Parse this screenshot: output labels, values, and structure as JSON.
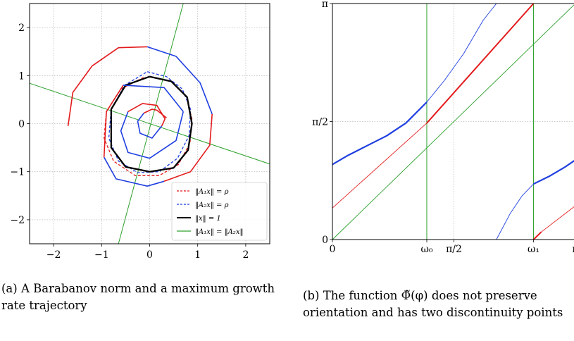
{
  "figure_a": {
    "caption_prefix": "(a)",
    "caption_text": "A Barabanov norm and a maximum growth rate trajectory",
    "chart_data": {
      "type": "line",
      "xlim": [
        -2.5,
        2.5
      ],
      "ylim": [
        -2.5,
        2.5
      ],
      "xticks": [
        "−2",
        "−1",
        "0",
        "1",
        "2"
      ],
      "yticks": [
        "2",
        "1",
        "0",
        "−1",
        "−2"
      ],
      "grid": true,
      "legend_position": "lower-right",
      "legend": [
        {
          "label": "‖A₁x‖ = ρ",
          "color": "#e31a1c",
          "style": "dashed"
        },
        {
          "label": "‖A₂x‖ = ρ",
          "color": "#1f3fe0",
          "style": "dashed"
        },
        {
          "label": "‖x‖ = 1",
          "color": "#000000",
          "style": "solid"
        },
        {
          "label": "‖A₁x‖ = ‖A₂x‖",
          "color": "#2ca02c",
          "style": "solid"
        }
      ],
      "series": [
        {
          "kind": "line",
          "color": "#2ca02c",
          "x": [
            -2.5,
            2.5
          ],
          "y": [
            0.84,
            -0.84
          ]
        },
        {
          "kind": "line",
          "color": "#2ca02c",
          "x": [
            -0.65,
            0.7
          ],
          "y": [
            -2.5,
            2.5
          ]
        },
        {
          "kind": "curve",
          "color": "#e31a1c",
          "dashed": true,
          "width": 1.3,
          "x": [
            0.0,
            0.45,
            0.77,
            0.88,
            0.84,
            0.6,
            0.2,
            -0.3,
            -0.75,
            -0.95,
            -0.9,
            -0.6,
            -0.15,
            0.0
          ],
          "y": [
            0.97,
            0.88,
            0.55,
            0.1,
            -0.4,
            -0.85,
            -1.08,
            -1.08,
            -0.78,
            -0.3,
            0.25,
            0.72,
            0.95,
            0.97
          ]
        },
        {
          "kind": "curve",
          "color": "#1f3fe0",
          "dashed": true,
          "width": 1.3,
          "x": [
            -0.05,
            0.35,
            0.68,
            0.85,
            0.82,
            0.58,
            0.2,
            -0.25,
            -0.65,
            -0.85,
            -0.8,
            -0.52,
            -0.05
          ],
          "y": [
            1.08,
            0.98,
            0.72,
            0.3,
            -0.25,
            -0.72,
            -1.0,
            -1.02,
            -0.78,
            -0.3,
            0.3,
            0.8,
            1.08
          ]
        },
        {
          "kind": "curve",
          "color": "#000000",
          "dashed": false,
          "width": 2.3,
          "x": [
            0.0,
            0.45,
            0.78,
            0.88,
            0.8,
            0.5,
            0.0,
            -0.5,
            -0.8,
            -0.8,
            -0.5,
            0.0
          ],
          "y": [
            0.98,
            0.88,
            0.55,
            0.0,
            -0.55,
            -0.92,
            -1.0,
            -0.9,
            -0.5,
            0.3,
            0.8,
            0.98
          ]
        },
        {
          "kind": "spiral",
          "color": "#e31a1c",
          "dashed": false,
          "width": 1.6,
          "x": [
            -1.7,
            -1.6,
            -1.2,
            -0.65,
            -0.05
          ],
          "y": [
            -0.05,
            0.65,
            1.2,
            1.58,
            1.6
          ]
        },
        {
          "kind": "spiral",
          "color": "#1f3fe0",
          "dashed": false,
          "width": 1.6,
          "x": [
            -0.05,
            0.55,
            1.05,
            1.3
          ],
          "y": [
            1.6,
            1.4,
            0.85,
            0.2
          ]
        },
        {
          "kind": "spiral",
          "color": "#e31a1c",
          "dashed": false,
          "width": 1.6,
          "x": [
            1.3,
            1.25,
            0.85,
            0.3
          ],
          "y": [
            0.2,
            -0.45,
            -1.0,
            -1.2
          ]
        },
        {
          "kind": "spiral",
          "color": "#1f3fe0",
          "dashed": false,
          "width": 1.6,
          "x": [
            0.3,
            -0.05,
            -0.7,
            -0.95
          ],
          "y": [
            -1.2,
            -1.3,
            -1.15,
            -0.7
          ]
        },
        {
          "kind": "spiral",
          "color": "#e31a1c",
          "dashed": false,
          "width": 1.6,
          "x": [
            -0.95,
            -0.9,
            -0.55
          ],
          "y": [
            -0.7,
            0.25,
            0.8
          ]
        },
        {
          "kind": "spiral",
          "color": "#1f3fe0",
          "dashed": false,
          "width": 1.6,
          "x": [
            -0.55,
            0.3,
            0.7
          ],
          "y": [
            0.8,
            0.75,
            0.25
          ]
        },
        {
          "kind": "spiral",
          "color": "#1f3fe0",
          "dashed": false,
          "width": 1.6,
          "x": [
            0.7,
            0.55,
            0.0,
            -0.45,
            -0.6,
            -0.45
          ],
          "y": [
            0.25,
            -0.35,
            -0.72,
            -0.6,
            -0.15,
            0.25
          ]
        },
        {
          "kind": "spiral",
          "color": "#e31a1c",
          "dashed": false,
          "width": 1.6,
          "x": [
            -0.45,
            -0.15,
            0.15,
            0.32,
            0.25
          ],
          "y": [
            0.25,
            0.42,
            0.38,
            0.1,
            -0.05
          ]
        },
        {
          "kind": "spiral",
          "color": "#1f3fe0",
          "dashed": false,
          "width": 1.6,
          "x": [
            0.25,
            0.05,
            -0.2,
            -0.25,
            -0.12
          ],
          "y": [
            -0.05,
            -0.3,
            -0.2,
            0.05,
            0.22
          ]
        },
        {
          "kind": "spiral",
          "color": "#e31a1c",
          "dashed": false,
          "width": 1.6,
          "x": [
            -0.12,
            0.05,
            0.15,
            0.35
          ],
          "y": [
            0.22,
            0.3,
            0.28,
            0.12
          ]
        }
      ]
    }
  },
  "figure_b": {
    "caption_prefix": "(b)",
    "caption_text": "The function Φ̃(φ) does not preserve orientation and has two discontinuity points",
    "chart_data": {
      "type": "line",
      "xlim": [
        0,
        3.1416
      ],
      "ylim": [
        0,
        3.1416
      ],
      "xticks": [
        {
          "value": 0,
          "label": "0"
        },
        {
          "value": 1.22,
          "label": "ω₀"
        },
        {
          "value": 1.5708,
          "label": "π/2"
        },
        {
          "value": 2.6,
          "label": "ω₁"
        },
        {
          "value": 3.1416,
          "label": "π"
        }
      ],
      "yticks": [
        {
          "value": 0,
          "label": "0"
        },
        {
          "value": 1.5708,
          "label": "π/2"
        },
        {
          "value": 3.1416,
          "label": "π"
        }
      ],
      "grid": true,
      "vlines": [
        {
          "x": 1.22,
          "color": "#2ca02c"
        },
        {
          "x": 2.6,
          "color": "#2ca02c"
        }
      ],
      "series": [
        {
          "color": "#2ca02c",
          "width": 0.9,
          "x": [
            0,
            3.1416
          ],
          "y": [
            0,
            3.1416
          ]
        },
        {
          "color": "#e31a1c",
          "width": 0.9,
          "x": [
            0,
            1.22
          ],
          "y": [
            0.42,
            1.55
          ]
        },
        {
          "color": "#e31a1c",
          "width": 2.0,
          "x": [
            1.22,
            2.6
          ],
          "y": [
            1.55,
            3.1416
          ]
        },
        {
          "color": "#e31a1c",
          "width": 2.0,
          "x": [
            2.6,
            2.7
          ],
          "y": [
            0,
            0.1
          ]
        },
        {
          "color": "#e31a1c",
          "width": 0.9,
          "x": [
            2.7,
            3.1416
          ],
          "y": [
            0.1,
            0.45
          ]
        },
        {
          "color": "#1f3fe0",
          "width": 2.2,
          "x": [
            0,
            0.2,
            0.45,
            0.7,
            0.95,
            1.22
          ],
          "y": [
            1.0,
            1.12,
            1.25,
            1.38,
            1.55,
            1.83
          ]
        },
        {
          "color": "#1f3fe0",
          "width": 0.9,
          "x": [
            1.22,
            1.45,
            1.7,
            1.95,
            2.12
          ],
          "y": [
            1.83,
            2.12,
            2.48,
            2.92,
            3.1416
          ]
        },
        {
          "color": "#1f3fe0",
          "width": 0.9,
          "x": [
            2.12,
            2.3,
            2.45,
            2.6
          ],
          "y": [
            0,
            0.35,
            0.58,
            0.74
          ]
        },
        {
          "color": "#1f3fe0",
          "width": 2.2,
          "x": [
            2.6,
            2.8,
            3.0,
            3.1416
          ],
          "y": [
            0.74,
            0.84,
            0.96,
            1.06
          ]
        }
      ]
    }
  }
}
